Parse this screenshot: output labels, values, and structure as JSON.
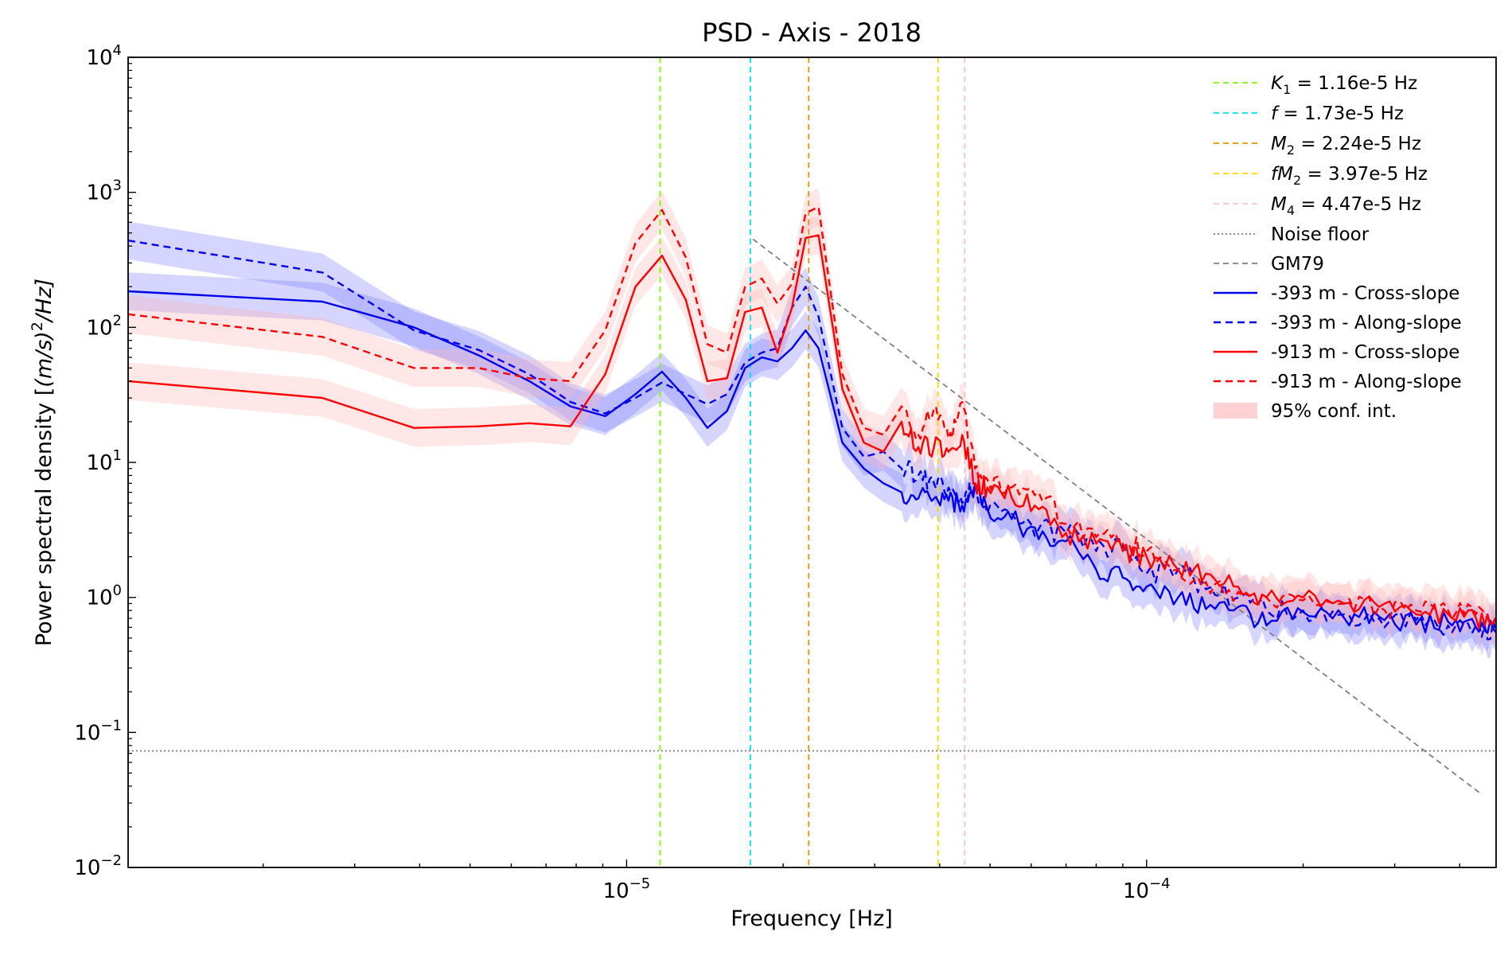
{
  "chart_data": {
    "type": "line",
    "title": "PSD - Axis - 2018",
    "xlabel": "Frequency [Hz]",
    "ylabel": "Power spectral density [(m/s)²/Hz]",
    "xscale": "log",
    "yscale": "log",
    "xlim": [
      1.1e-06,
      0.00047
    ],
    "ylim": [
      0.01,
      10000
    ],
    "grid": false,
    "legend_position": "top-right",
    "x_ticks": [
      {
        "value": 1e-05,
        "base": "10",
        "exp": "−5"
      },
      {
        "value": 0.0001,
        "base": "10",
        "exp": "−4"
      }
    ],
    "y_ticks": [
      {
        "value": 0.01,
        "base": "10",
        "exp": "−2"
      },
      {
        "value": 0.1,
        "base": "10",
        "exp": "−1"
      },
      {
        "value": 1,
        "base": "10",
        "exp": "0"
      },
      {
        "value": 10,
        "base": "10",
        "exp": "1"
      },
      {
        "value": 100,
        "base": "10",
        "exp": "2"
      },
      {
        "value": 1000,
        "base": "10",
        "exp": "3"
      },
      {
        "value": 10000,
        "base": "10",
        "exp": "4"
      }
    ],
    "vlines": [
      {
        "x": 1.16e-05,
        "color": "#7cfc00",
        "label_sym": "K",
        "label_sub": "1",
        "label_rest": " = 1.16e-5 Hz"
      },
      {
        "x": 1.73e-05,
        "color": "#00e5ee",
        "label_sym": "f",
        "label_sub": "",
        "label_rest": " = 1.73e-5 Hz"
      },
      {
        "x": 2.24e-05,
        "color": "#e69500",
        "label_sym": "M",
        "label_sub": "2",
        "label_rest": " = 2.24e-5 Hz"
      },
      {
        "x": 3.97e-05,
        "color": "#ffd700",
        "label_sym": "fM",
        "label_sub": "2",
        "label_rest": " = 3.97e-5 Hz"
      },
      {
        "x": 4.47e-05,
        "color": "#ffc0cb",
        "label_sym": "M",
        "label_sub": "4",
        "label_rest": " = 4.47e-5 Hz"
      }
    ],
    "noise_floor": {
      "label": "Noise floor",
      "y": 0.073,
      "color": "#777777"
    },
    "gm79": {
      "label": "GM79",
      "color": "#808080",
      "x": [
        1.75e-05,
        0.00044
      ],
      "y": [
        450,
        0.035
      ]
    },
    "conf_label": "95% conf. int.",
    "series": [
      {
        "name": "-393 m - Cross-slope",
        "color": "#0000ee",
        "dash": false,
        "band_color": "#7b7bff",
        "x": [
          1.1e-06,
          2.6e-06,
          3.9e-06,
          5.2e-06,
          6.5e-06,
          7.8e-06,
          9.1e-06,
          1.04e-05,
          1.17e-05,
          1.3e-05,
          1.43e-05,
          1.56e-05,
          1.69e-05,
          1.82e-05,
          1.95e-05,
          2.08e-05,
          2.21e-05,
          2.34e-05,
          2.6e-05,
          2.86e-05,
          3.12e-05,
          3.38e-05,
          3.64e-05,
          3.9e-05,
          4.16e-05,
          4.42e-05,
          4.68e-05,
          4.94e-05,
          5.5e-05,
          6.2e-05,
          7e-05,
          8e-05,
          9e-05,
          0.0001,
          0.000115,
          0.00013,
          0.00015,
          0.00017,
          0.0002,
          0.00024,
          0.00028,
          0.00033,
          0.00038,
          0.00043,
          0.00047
        ],
        "y": [
          185,
          155,
          100,
          62,
          40,
          26,
          22,
          32,
          47,
          30,
          18,
          24,
          50,
          60,
          56,
          70,
          95,
          70,
          14,
          9,
          7,
          6,
          5.4,
          5.4,
          5.2,
          4.8,
          7,
          4.5,
          3.8,
          2.7,
          2.6,
          1.6,
          1.4,
          1.2,
          1.0,
          0.82,
          0.85,
          0.62,
          0.78,
          0.7,
          0.72,
          0.63,
          0.66,
          0.6,
          0.55
        ]
      },
      {
        "name": "-393 m - Along-slope",
        "color": "#0000ee",
        "dash": true,
        "band_color": "#7b7bff",
        "x": [
          1.1e-06,
          2.6e-06,
          3.9e-06,
          5.2e-06,
          6.5e-06,
          7.8e-06,
          9.1e-06,
          1.04e-05,
          1.17e-05,
          1.3e-05,
          1.43e-05,
          1.56e-05,
          1.69e-05,
          1.82e-05,
          1.95e-05,
          2.08e-05,
          2.21e-05,
          2.34e-05,
          2.6e-05,
          2.86e-05,
          3.12e-05,
          3.38e-05,
          3.64e-05,
          3.9e-05,
          4.16e-05,
          4.42e-05,
          4.68e-05,
          4.94e-05,
          5.5e-05,
          6.2e-05,
          7e-05,
          8e-05,
          9e-05,
          0.0001,
          0.000115,
          0.00013,
          0.00015,
          0.00017,
          0.0002,
          0.00024,
          0.00028,
          0.00033,
          0.00038,
          0.00043,
          0.00047
        ],
        "y": [
          440,
          255,
          95,
          68,
          45,
          28,
          23,
          30,
          39,
          32,
          27,
          32,
          55,
          65,
          70,
          140,
          200,
          120,
          18,
          11,
          12,
          9,
          8,
          7,
          6.5,
          5,
          7,
          4.2,
          4.2,
          3.2,
          3,
          2.2,
          2.4,
          1.5,
          1.6,
          1.15,
          1.0,
          0.8,
          0.8,
          0.75,
          0.7,
          0.68,
          0.62,
          0.62,
          0.55
        ]
      },
      {
        "name": "-913 m - Cross-slope",
        "color": "#ff0000",
        "dash": false,
        "band_color": "#ffb3b3",
        "x": [
          1.1e-06,
          2.6e-06,
          3.9e-06,
          5.2e-06,
          6.5e-06,
          7.8e-06,
          9.1e-06,
          1.04e-05,
          1.17e-05,
          1.3e-05,
          1.43e-05,
          1.56e-05,
          1.69e-05,
          1.82e-05,
          1.95e-05,
          2.08e-05,
          2.21e-05,
          2.34e-05,
          2.6e-05,
          2.86e-05,
          3.12e-05,
          3.38e-05,
          3.64e-05,
          3.9e-05,
          4.16e-05,
          4.42e-05,
          4.68e-05,
          4.94e-05,
          5.5e-05,
          6.2e-05,
          7e-05,
          8e-05,
          9e-05,
          0.0001,
          0.000115,
          0.00013,
          0.00015,
          0.00017,
          0.0002,
          0.00024,
          0.00028,
          0.00033,
          0.00038,
          0.00043,
          0.00047
        ],
        "y": [
          40,
          30,
          18,
          18.5,
          19.5,
          18.5,
          45,
          200,
          340,
          160,
          40,
          42,
          130,
          140,
          65,
          140,
          460,
          480,
          35,
          14,
          12,
          20,
          13,
          13,
          12,
          16,
          7,
          6.5,
          5.5,
          4.5,
          3,
          2.5,
          2.2,
          2,
          1.6,
          1.5,
          1.2,
          1.0,
          1.0,
          0.9,
          0.85,
          0.75,
          0.75,
          0.7,
          0.68
        ]
      },
      {
        "name": "-913 m - Along-slope",
        "color": "#ff0000",
        "dash": true,
        "band_color": "#ffb3b3",
        "x": [
          1.1e-06,
          2.6e-06,
          3.9e-06,
          5.2e-06,
          6.5e-06,
          7.8e-06,
          9.1e-06,
          1.04e-05,
          1.17e-05,
          1.3e-05,
          1.43e-05,
          1.56e-05,
          1.69e-05,
          1.82e-05,
          1.95e-05,
          2.08e-05,
          2.21e-05,
          2.34e-05,
          2.6e-05,
          2.86e-05,
          3.12e-05,
          3.38e-05,
          3.64e-05,
          3.9e-05,
          4.16e-05,
          4.42e-05,
          4.68e-05,
          4.94e-05,
          5.5e-05,
          6.2e-05,
          7e-05,
          8e-05,
          9e-05,
          0.0001,
          0.000115,
          0.00013,
          0.00015,
          0.00017,
          0.0002,
          0.00024,
          0.00028,
          0.00033,
          0.00038,
          0.00043,
          0.00047
        ],
        "y": [
          125,
          85,
          50,
          50,
          42,
          40,
          95,
          420,
          740,
          330,
          75,
          65,
          200,
          230,
          150,
          210,
          700,
          780,
          45,
          18,
          16,
          26,
          16,
          25,
          15,
          28,
          9,
          7.5,
          6.5,
          6,
          3.5,
          2.8,
          2.5,
          2.2,
          1.6,
          1.3,
          1.1,
          1.0,
          0.95,
          0.9,
          0.85,
          0.8,
          0.8,
          0.75,
          0.72
        ]
      }
    ]
  }
}
